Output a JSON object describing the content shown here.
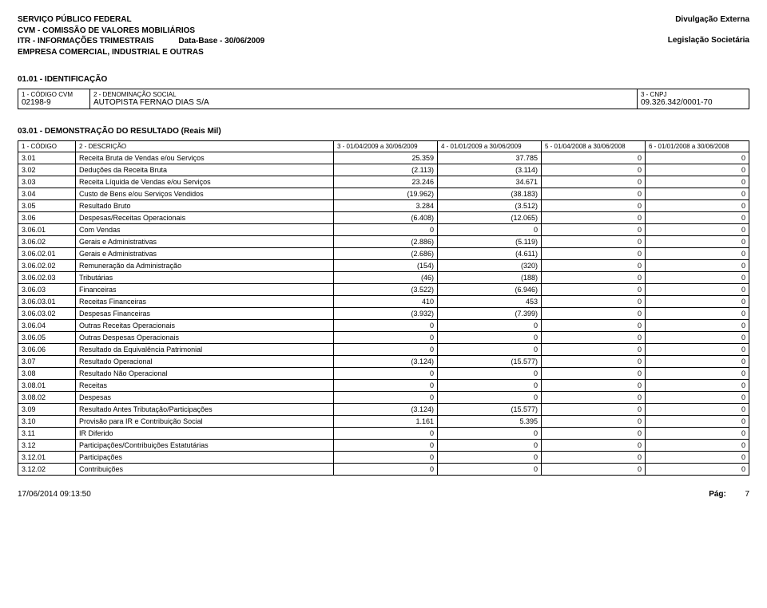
{
  "header": {
    "line1": "SERVIÇO PÚBLICO FEDERAL",
    "line2": "CVM - COMISSÃO DE VALORES MOBILIÁRIOS",
    "line3_prefix": "ITR - INFORMAÇÕES TRIMESTRAIS",
    "line3_database": "Data-Base - 30/06/2009",
    "line4": "EMPRESA COMERCIAL, INDUSTRIAL E OUTRAS",
    "right1": "Divulgação Externa",
    "right2": "Legislação Societária"
  },
  "section1": {
    "title": "01.01 - IDENTIFICAÇÃO",
    "labels": {
      "codigo_cvm": "1 - CÓDIGO CVM",
      "denominacao": "2 - DENOMINAÇÃO SOCIAL",
      "cnpj": "3 - CNPJ"
    },
    "values": {
      "codigo_cvm": "02198-9",
      "denominacao": "AUTOPISTA FERNAO DIAS S/A",
      "cnpj": "09.326.342/0001-70"
    }
  },
  "section2": {
    "title": "03.01 - DEMONSTRAÇÃO DO RESULTADO (Reais Mil)",
    "headers": {
      "c1": "1 - CÓDIGO",
      "c2": "2 - DESCRIÇÃO",
      "c3": "3 - 01/04/2009 a 30/06/2009",
      "c4": "4 - 01/01/2009 a 30/06/2009",
      "c5": "5 - 01/04/2008 a 30/06/2008",
      "c6": "6 - 01/01/2008 a 30/06/2008"
    },
    "rows": [
      {
        "code": "3.01",
        "desc": "Receita Bruta de Vendas e/ou Serviços",
        "v1": "25.359",
        "v2": "37.785",
        "v3": "0",
        "v4": "0"
      },
      {
        "code": "3.02",
        "desc": "Deduções da Receita Bruta",
        "v1": "(2.113)",
        "v2": "(3.114)",
        "v3": "0",
        "v4": "0"
      },
      {
        "code": "3.03",
        "desc": "Receita Líquida de Vendas e/ou Serviços",
        "v1": "23.246",
        "v2": "34.671",
        "v3": "0",
        "v4": "0"
      },
      {
        "code": "3.04",
        "desc": "Custo de Bens e/ou Serviços Vendidos",
        "v1": "(19.962)",
        "v2": "(38.183)",
        "v3": "0",
        "v4": "0"
      },
      {
        "code": "3.05",
        "desc": "Resultado Bruto",
        "v1": "3.284",
        "v2": "(3.512)",
        "v3": "0",
        "v4": "0"
      },
      {
        "code": "3.06",
        "desc": "Despesas/Receitas Operacionais",
        "v1": "(6.408)",
        "v2": "(12.065)",
        "v3": "0",
        "v4": "0"
      },
      {
        "code": "3.06.01",
        "desc": "Com Vendas",
        "v1": "0",
        "v2": "0",
        "v3": "0",
        "v4": "0"
      },
      {
        "code": "3.06.02",
        "desc": "Gerais e Administrativas",
        "v1": "(2.886)",
        "v2": "(5.119)",
        "v3": "0",
        "v4": "0"
      },
      {
        "code": "3.06.02.01",
        "desc": "Gerais e Administrativas",
        "v1": "(2.686)",
        "v2": "(4.611)",
        "v3": "0",
        "v4": "0"
      },
      {
        "code": "3.06.02.02",
        "desc": "Remuneração da Administração",
        "v1": "(154)",
        "v2": "(320)",
        "v3": "0",
        "v4": "0"
      },
      {
        "code": "3.06.02.03",
        "desc": "Tributárias",
        "v1": "(46)",
        "v2": "(188)",
        "v3": "0",
        "v4": "0"
      },
      {
        "code": "3.06.03",
        "desc": "Financeiras",
        "v1": "(3.522)",
        "v2": "(6.946)",
        "v3": "0",
        "v4": "0"
      },
      {
        "code": "3.06.03.01",
        "desc": "Receitas Financeiras",
        "v1": "410",
        "v2": "453",
        "v3": "0",
        "v4": "0"
      },
      {
        "code": "3.06.03.02",
        "desc": "Despesas Financeiras",
        "v1": "(3.932)",
        "v2": "(7.399)",
        "v3": "0",
        "v4": "0"
      },
      {
        "code": "3.06.04",
        "desc": "Outras Receitas Operacionais",
        "v1": "0",
        "v2": "0",
        "v3": "0",
        "v4": "0"
      },
      {
        "code": "3.06.05",
        "desc": "Outras Despesas Operacionais",
        "v1": "0",
        "v2": "0",
        "v3": "0",
        "v4": "0"
      },
      {
        "code": "3.06.06",
        "desc": "Resultado da Equivalência Patrimonial",
        "v1": "0",
        "v2": "0",
        "v3": "0",
        "v4": "0"
      },
      {
        "code": "3.07",
        "desc": "Resultado Operacional",
        "v1": "(3.124)",
        "v2": "(15.577)",
        "v3": "0",
        "v4": "0"
      },
      {
        "code": "3.08",
        "desc": "Resultado Não Operacional",
        "v1": "0",
        "v2": "0",
        "v3": "0",
        "v4": "0"
      },
      {
        "code": "3.08.01",
        "desc": "Receitas",
        "v1": "0",
        "v2": "0",
        "v3": "0",
        "v4": "0"
      },
      {
        "code": "3.08.02",
        "desc": "Despesas",
        "v1": "0",
        "v2": "0",
        "v3": "0",
        "v4": "0"
      },
      {
        "code": "3.09",
        "desc": "Resultado Antes Tributação/Participações",
        "v1": "(3.124)",
        "v2": "(15.577)",
        "v3": "0",
        "v4": "0"
      },
      {
        "code": "3.10",
        "desc": "Provisão para IR e Contribuição Social",
        "v1": "1.161",
        "v2": "5.395",
        "v3": "0",
        "v4": "0"
      },
      {
        "code": "3.11",
        "desc": "IR Diferido",
        "v1": "0",
        "v2": "0",
        "v3": "0",
        "v4": "0"
      },
      {
        "code": "3.12",
        "desc": "Participações/Contribuições Estatutárias",
        "v1": "0",
        "v2": "0",
        "v3": "0",
        "v4": "0"
      },
      {
        "code": "3.12.01",
        "desc": "Participações",
        "v1": "0",
        "v2": "0",
        "v3": "0",
        "v4": "0"
      },
      {
        "code": "3.12.02",
        "desc": "Contribuições",
        "v1": "0",
        "v2": "0",
        "v3": "0",
        "v4": "0"
      }
    ]
  },
  "footer": {
    "timestamp": "17/06/2014 09:13:50",
    "page_label": "Pág:",
    "page_number": "7"
  }
}
